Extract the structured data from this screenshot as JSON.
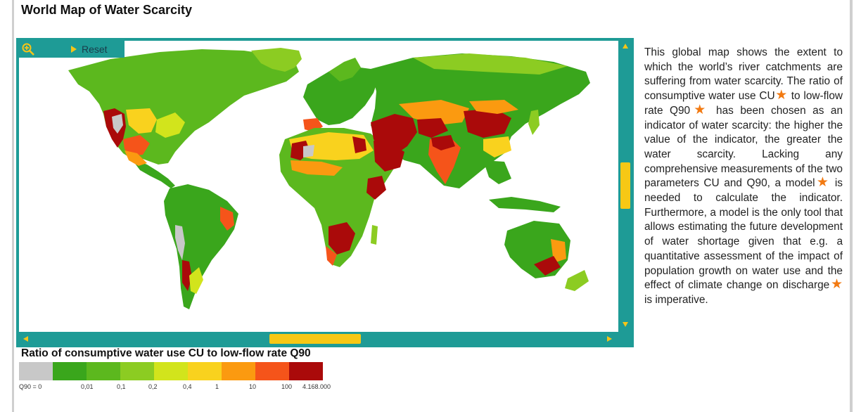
{
  "title": "World Map of Water Scarcity",
  "map": {
    "toolbar": {
      "zoom_icon": "zoom-in-icon",
      "reset_label": "Reset"
    },
    "scrollbars": {
      "vertical": "vertical-scrollbar",
      "horizontal": "horizontal-scrollbar"
    }
  },
  "legend": {
    "title": "Ratio of consumptive water use CU to low-flow rate Q90",
    "colors": [
      "#c8c8c8",
      "#3aa61c",
      "#5cb81e",
      "#8ccc22",
      "#d2e41c",
      "#f9d21e",
      "#fb9a10",
      "#f5541a",
      "#aa0a0a"
    ],
    "labels": [
      "Q90 = 0",
      "0,01",
      "0,1",
      "0,2",
      "0,4",
      "1",
      "10",
      "100",
      "4.168.000"
    ]
  },
  "description": {
    "segments": [
      {
        "text": "This global map shows the extent to which the world’s river catchments are suffering from water scarcity. The ratio of consumptive water use CU"
      },
      {
        "text": " to low-flow rate Q90"
      },
      {
        "text": " has been chosen as an indicator of water scarcity: the higher the value of the indicator, the greater the water scarcity. Lacking any comprehensive measurements of the two parameters CU and Q90, a model"
      },
      {
        "text": " is needed to calculate the indicator. Furthermore, a model is the only tool that allows estimating the future development of water shortage given that e.g. a quantitative assessment of the impact of population growth on water use and the effect of climate change on discharge"
      },
      {
        "text": " is imperative."
      }
    ],
    "star_icon": "star-icon"
  }
}
